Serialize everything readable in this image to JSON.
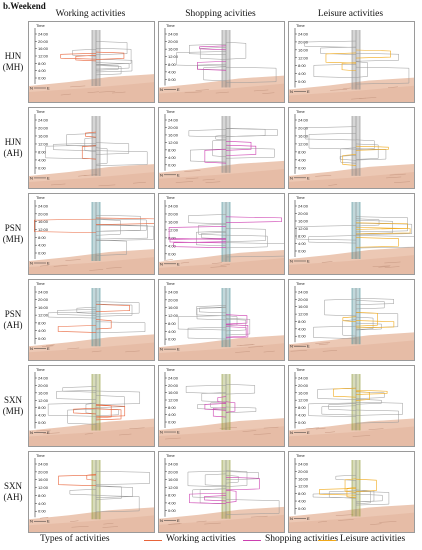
{
  "figure": {
    "title": "b.Weekend",
    "columns": [
      "Working activities",
      "Shopping acivities",
      "Leisure activities"
    ],
    "rows": [
      [
        "HJN",
        "(MH)"
      ],
      [
        "HJN",
        "(AH)"
      ],
      [
        "PSN",
        "(MH)"
      ],
      [
        "PSN",
        "(AH)"
      ],
      [
        "SXN",
        "(MH)"
      ],
      [
        "SXN",
        "(AH)"
      ]
    ],
    "axis": {
      "z_label": "Time",
      "ticks": [
        "0:00",
        "4:00",
        "8:00",
        "12:00",
        "16:00",
        "20:00",
        "24:00"
      ],
      "north": "N",
      "east": "E"
    },
    "row_colors": [
      "#8a8a8a",
      "#8a8a8a",
      "#4f8f98",
      "#4f8f98",
      "#8f9a3c",
      "#8f9a3c"
    ]
  },
  "legend": {
    "title": "Types of activities",
    "items": [
      {
        "label": "Working activities",
        "color": "#e8643a"
      },
      {
        "label": "Shopping activities",
        "color": "#cc3fb0"
      },
      {
        "label": "Leisure activities",
        "color": "#f0a91a"
      }
    ]
  }
}
